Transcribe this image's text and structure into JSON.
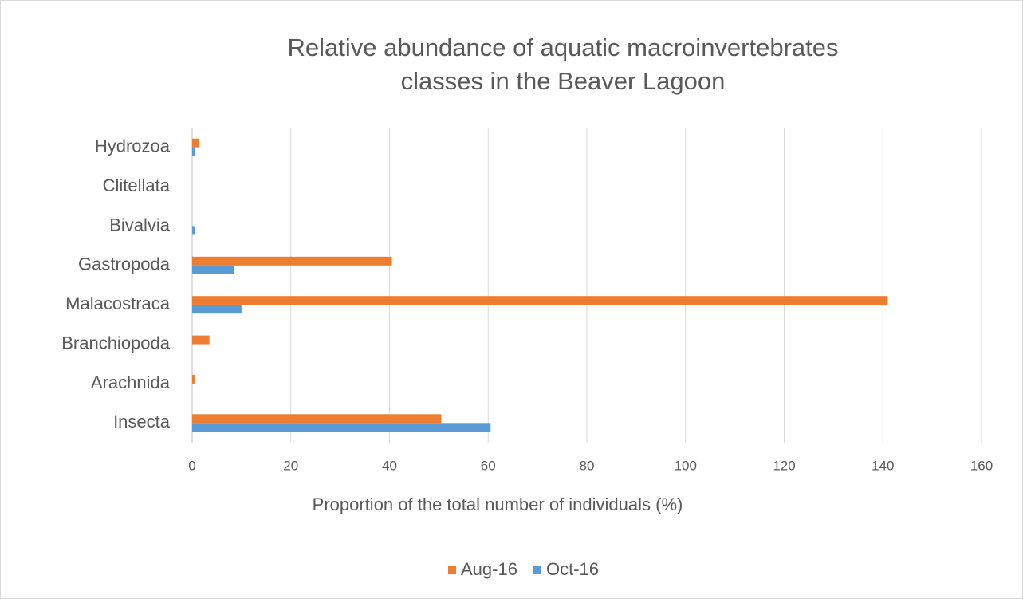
{
  "chart_data": {
    "type": "barh",
    "title": [
      "Relative abundance of aquatic macroinvertebrates",
      "classes in the Beaver Lagoon"
    ],
    "xlabel": "Proportion of the total number of individuals (%)",
    "categories": [
      "Insecta",
      "Arachnida",
      "Branchiopoda",
      "Malacostraca",
      "Gastropoda",
      "Bivalvia",
      "Clitellata",
      "Hydrozoa"
    ],
    "series": [
      {
        "name": "Aug-16",
        "color": "#ed7d31",
        "values": [
          50.5,
          0.5,
          3.5,
          141,
          40.5,
          0,
          0,
          1.5
        ]
      },
      {
        "name": "Oct-16",
        "color": "#5b9bd5",
        "values": [
          60.5,
          0,
          0,
          10,
          8.5,
          0.5,
          0,
          0.5
        ]
      }
    ],
    "xlim": [
      0,
      160
    ],
    "xticks": [
      0,
      20,
      40,
      60,
      80,
      100,
      120,
      140,
      160
    ],
    "grid": true,
    "legend": "bottom"
  }
}
